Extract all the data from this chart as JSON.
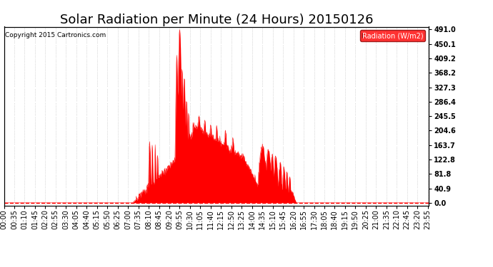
{
  "title": "Solar Radiation per Minute (24 Hours) 20150126",
  "copyright_text": "Copyright 2015 Cartronics.com",
  "legend_label": "Radiation (W/m2)",
  "yticks": [
    0.0,
    40.9,
    81.8,
    122.8,
    163.7,
    204.6,
    245.5,
    286.4,
    327.3,
    368.2,
    409.2,
    450.1,
    491.0
  ],
  "ymax": 491.0,
  "ymin": 0.0,
  "fill_color": "#ff0000",
  "line_color": "#ff0000",
  "background_color": "#ffffff",
  "grid_color": "#888888",
  "title_fontsize": 13,
  "tick_fontsize": 7,
  "n_minutes": 1440
}
